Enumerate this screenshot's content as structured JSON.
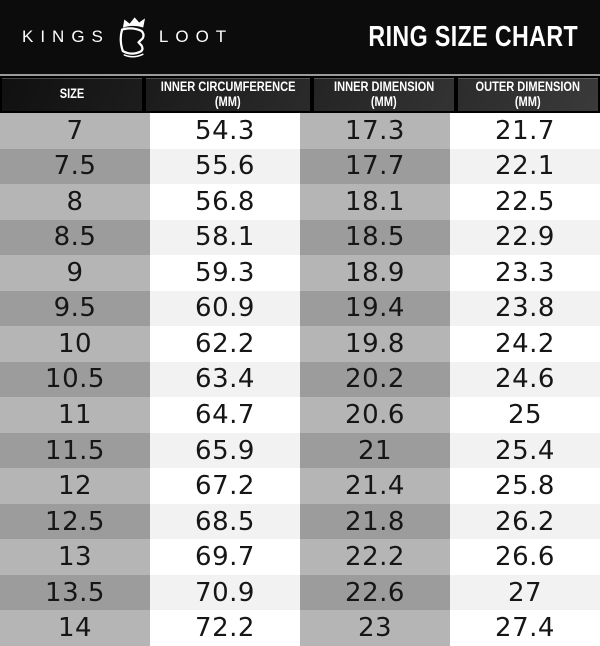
{
  "banner": {
    "brand_word_left": "KINGS",
    "brand_word_right": "LOOT",
    "logo_icon": "crown-wallet-icon",
    "title": "RING SIZE CHART"
  },
  "table": {
    "headers": [
      {
        "label": "SIZE",
        "sub": ""
      },
      {
        "label": "INNER CIRCUMFERENCE",
        "sub": "(MM)"
      },
      {
        "label": "INNER DIMENSION",
        "sub": "(MM)"
      },
      {
        "label": "OUTER DIMENSION",
        "sub": "(MM)"
      }
    ]
  },
  "chart_data": {
    "type": "table",
    "title": "RING SIZE CHART",
    "columns": [
      "SIZE",
      "INNER CIRCUMFERENCE (MM)",
      "INNER DIMENSION (MM)",
      "OUTER DIMENSION (MM)"
    ],
    "rows": [
      [
        "7",
        "54.3",
        "17.3",
        "21.7"
      ],
      [
        "7.5",
        "55.6",
        "17.7",
        "22.1"
      ],
      [
        "8",
        "56.8",
        "18.1",
        "22.5"
      ],
      [
        "8.5",
        "58.1",
        "18.5",
        "22.9"
      ],
      [
        "9",
        "59.3",
        "18.9",
        "23.3"
      ],
      [
        "9.5",
        "60.9",
        "19.4",
        "23.8"
      ],
      [
        "10",
        "62.2",
        "19.8",
        "24.2"
      ],
      [
        "10.5",
        "63.4",
        "20.2",
        "24.6"
      ],
      [
        "11",
        "64.7",
        "20.6",
        "25"
      ],
      [
        "11.5",
        "65.9",
        "21",
        "25.4"
      ],
      [
        "12",
        "67.2",
        "21.4",
        "25.8"
      ],
      [
        "12.5",
        "68.5",
        "21.8",
        "26.2"
      ],
      [
        "13",
        "69.7",
        "22.2",
        "26.6"
      ],
      [
        "13.5",
        "70.9",
        "22.6",
        "27"
      ],
      [
        "14",
        "72.2",
        "23",
        "27.4"
      ]
    ]
  },
  "colors": {
    "banner_bg": "#0c0c0c",
    "header_band_bg": "#000000",
    "header_separator": "#9b9b9b",
    "shaded_col_light_row": "#b5b5b5",
    "shaded_col_dark_row": "#9c9c9c",
    "plain_col_light_row": "#ffffff",
    "plain_col_dark_row": "#f2f2f2",
    "header_text": "#ffffff",
    "cell_text": "#161616"
  }
}
